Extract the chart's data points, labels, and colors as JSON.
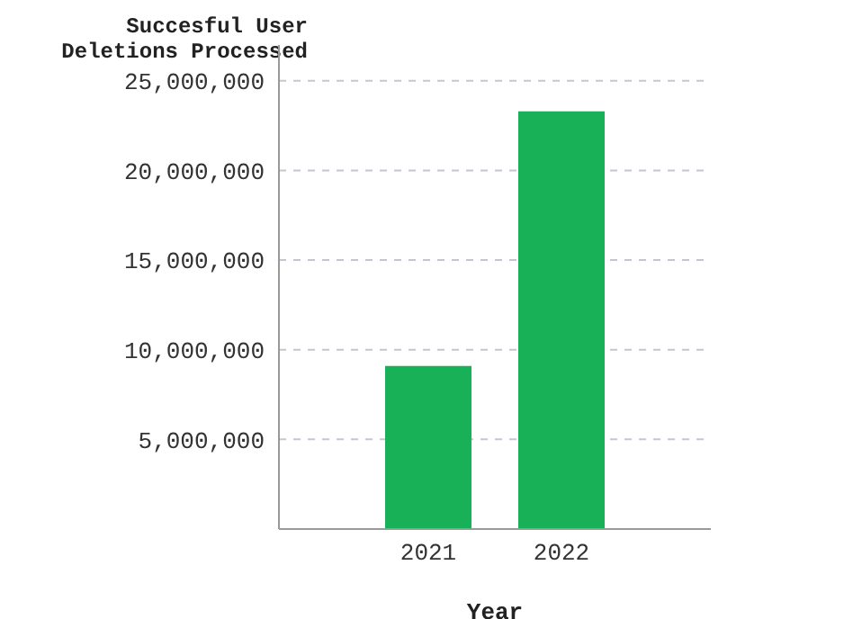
{
  "chart_data": {
    "type": "bar",
    "ylabel": "Succesful User Deletions Processed",
    "xlabel": "Year",
    "categories": [
      "2021",
      "2022"
    ],
    "values": [
      9100000,
      23300000
    ],
    "color": "#18b157",
    "ylim": [
      0,
      27000000
    ],
    "yticks": [
      {
        "value": 5000000,
        "label": "5,000,000"
      },
      {
        "value": 10000000,
        "label": "10,000,000"
      },
      {
        "value": 15000000,
        "label": "15,000,000"
      },
      {
        "value": 20000000,
        "label": "20,000,000"
      },
      {
        "value": 25000000,
        "label": "25,000,000"
      }
    ],
    "grid": "y"
  }
}
